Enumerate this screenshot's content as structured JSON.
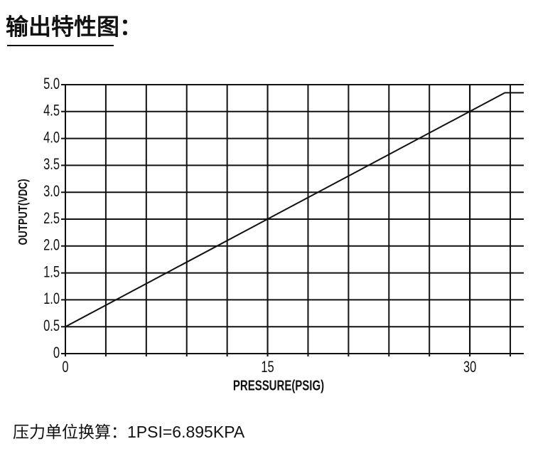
{
  "chart_data": {
    "type": "line",
    "title": "输出特性图：",
    "y_label": "OUTPUT(VDC)",
    "x_label": "PRESSURE(PSIG)",
    "note": "压力单位换算：1PSI=6.895KPA",
    "x": [
      0,
      32.6,
      34
    ],
    "series": [
      {
        "color": "#111111",
        "values": [
          0.5,
          4.85,
          4.85
        ]
      }
    ],
    "xlim": [
      0,
      34
    ],
    "ylim": [
      0,
      5
    ],
    "xticks": [
      0,
      15,
      30
    ],
    "x_gridlines": [
      3,
      6,
      9,
      12,
      15,
      18,
      21,
      24,
      27,
      30,
      33
    ],
    "yticks": [
      0,
      0.5,
      {
        "value": 1,
        "label": "1.0"
      },
      1.5,
      {
        "value": 2,
        "label": "2.0"
      },
      2.5,
      {
        "value": 3,
        "label": "3.0"
      },
      3.5,
      {
        "value": 4,
        "label": "4.0"
      },
      4.5,
      {
        "value": 5,
        "label": "5.0"
      }
    ],
    "grid": true
  }
}
